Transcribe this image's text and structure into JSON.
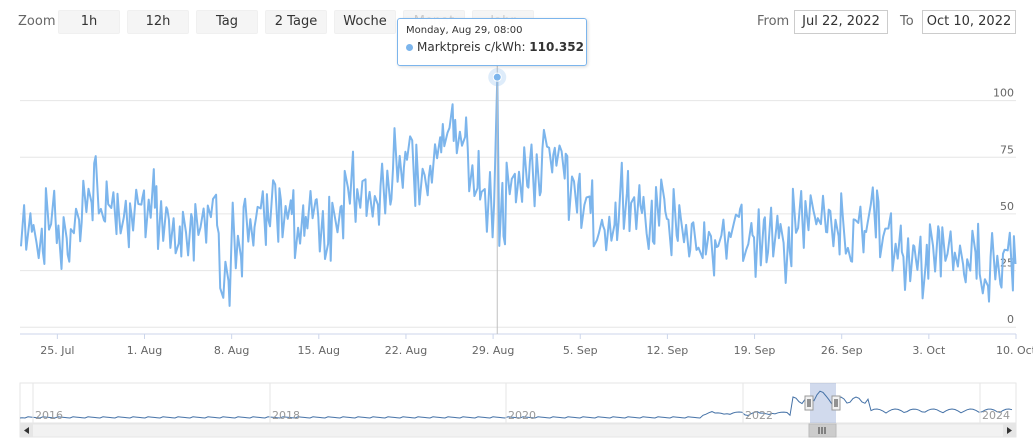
{
  "toolbar": {
    "zoom_label": "Zoom",
    "zoom_buttons": [
      "1h",
      "12h",
      "Tag",
      "2 Tage",
      "Woche",
      "Monat",
      "Jahr"
    ],
    "from_label": "From",
    "from_value": "Jul 22, 2022",
    "to_label": "To",
    "to_value": "Oct 10, 2022"
  },
  "tooltip": {
    "date": "Monday, Aug 29, 08:00",
    "series": "Marktpreis c/kWh",
    "value": "110.352"
  },
  "colors": {
    "series": "#7cb5ec",
    "navigator": "#4572a7",
    "grid": "#e6e6e6"
  },
  "chart_data": {
    "type": "line",
    "x_start": "2022-07-22",
    "x_end": "2022-10-10",
    "x_tick_labels": [
      "25. Jul",
      "1. Aug",
      "8. Aug",
      "15. Aug",
      "22. Aug",
      "29. Aug",
      "5. Sep",
      "12. Sep",
      "19. Sep",
      "26. Sep",
      "3. Oct",
      "10. Oct"
    ],
    "y_ticks": [
      0,
      25,
      50,
      75,
      100
    ],
    "ylim": [
      -3,
      125
    ],
    "grid": true,
    "legend": "none",
    "daily_values": [
      45,
      36,
      50,
      40,
      46,
      60,
      58,
      50,
      44,
      52,
      55,
      48,
      38,
      42,
      48,
      52,
      22,
      40,
      45,
      50,
      50,
      48,
      44,
      52,
      40,
      50,
      62,
      60,
      56,
      62,
      75,
      72,
      60,
      76,
      88,
      83,
      66,
      55,
      47,
      65,
      67,
      70,
      80,
      72,
      56,
      50,
      42,
      45,
      56,
      54,
      45,
      55,
      48,
      42,
      38,
      34,
      35,
      45,
      40,
      38,
      42,
      35,
      48,
      52,
      50,
      45,
      40,
      42,
      48,
      40,
      34,
      30,
      28,
      35,
      36,
      30,
      34,
      22,
      28,
      30
    ],
    "peak": {
      "x": "2022-08-29 08:00",
      "y": 110.352
    },
    "navigator": {
      "x_tick_labels": [
        "2016",
        "2018",
        "2020",
        "2022",
        "2024"
      ]
    }
  }
}
